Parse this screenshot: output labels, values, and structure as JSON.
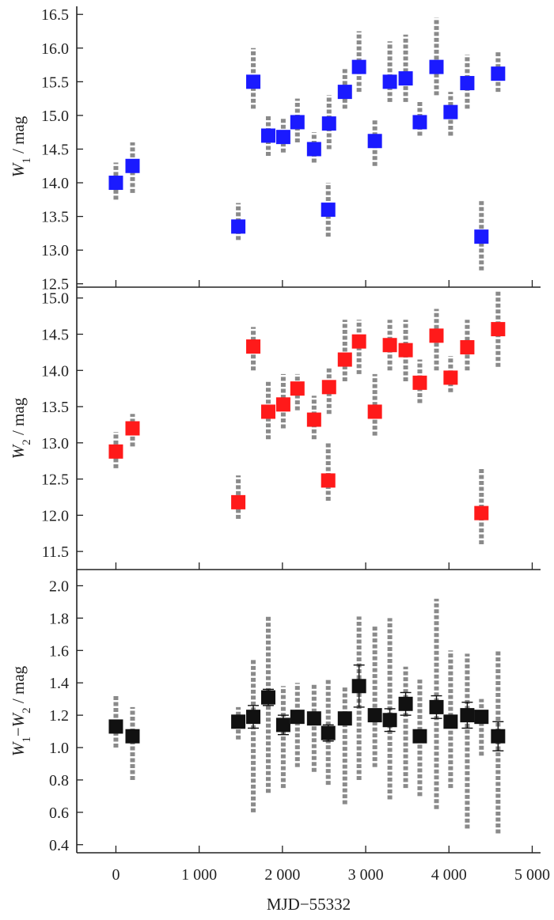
{
  "chart_data": [
    {
      "type": "scatter",
      "panel": "top",
      "ylabel": {
        "main": "W",
        "sub": "1",
        "unit": " / mag"
      },
      "ylim": [
        12.45,
        16.62
      ],
      "yticks": [
        "12.5",
        "13.0",
        "13.5",
        "14.0",
        "14.5",
        "15.0",
        "15.5",
        "16.0",
        "16.5"
      ],
      "marker_color": "#1a1aff",
      "series": [
        {
          "name": "",
          "x": [
            0,
            200,
            1470,
            1650,
            1830,
            2010,
            2180,
            2380,
            2550,
            2560,
            2750,
            2920,
            3110,
            3290,
            3480,
            3650,
            3850,
            4020,
            4220,
            4390,
            4590
          ],
          "y": [
            14.0,
            14.25,
            13.35,
            15.5,
            14.7,
            14.68,
            14.9,
            14.5,
            13.6,
            14.88,
            15.35,
            15.72,
            14.62,
            15.5,
            15.55,
            14.9,
            15.72,
            15.05,
            15.48,
            13.2,
            15.62
          ],
          "scatter": [
            [
              13.75,
              14.3
            ],
            [
              13.85,
              14.6
            ],
            [
              13.15,
              13.7
            ],
            [
              15.1,
              16.0
            ],
            [
              14.4,
              15.0
            ],
            [
              14.45,
              14.95
            ],
            [
              14.6,
              15.25
            ],
            [
              14.3,
              14.75
            ],
            [
              13.2,
              14.0
            ],
            [
              14.5,
              15.3
            ],
            [
              15.1,
              15.7
            ],
            [
              15.35,
              16.25
            ],
            [
              14.25,
              14.95
            ],
            [
              15.2,
              16.1
            ],
            [
              15.2,
              16.2
            ],
            [
              14.7,
              15.2
            ],
            [
              15.3,
              16.45
            ],
            [
              14.7,
              15.35
            ],
            [
              15.1,
              15.9
            ],
            [
              12.7,
              13.75
            ],
            [
              15.35,
              15.95
            ]
          ]
        }
      ]
    },
    {
      "type": "scatter",
      "panel": "middle",
      "ylabel": {
        "main": "W",
        "sub": "2",
        "unit": " / mag"
      },
      "ylim": [
        11.25,
        15.15
      ],
      "yticks": [
        "11.5",
        "12.0",
        "12.5",
        "13.0",
        "13.5",
        "14.0",
        "14.5",
        "15.0"
      ],
      "marker_color": "#ff1a1a",
      "series": [
        {
          "name": "",
          "x": [
            0,
            200,
            1470,
            1650,
            1830,
            2010,
            2180,
            2380,
            2550,
            2560,
            2750,
            2920,
            3110,
            3290,
            3480,
            3650,
            3850,
            4020,
            4220,
            4390,
            4590
          ],
          "y": [
            12.88,
            13.2,
            12.18,
            14.33,
            13.43,
            13.53,
            13.75,
            13.32,
            12.48,
            13.77,
            14.15,
            14.4,
            13.43,
            14.35,
            14.28,
            13.83,
            14.48,
            13.9,
            14.32,
            12.03,
            14.57
          ],
          "scatter": [
            [
              12.65,
              13.15
            ],
            [
              12.95,
              13.4
            ],
            [
              11.95,
              12.55
            ],
            [
              14.0,
              14.6
            ],
            [
              13.05,
              13.85
            ],
            [
              13.2,
              13.95
            ],
            [
              13.45,
              13.95
            ],
            [
              13.05,
              13.65
            ],
            [
              12.2,
              13.0
            ],
            [
              13.4,
              14.05
            ],
            [
              13.85,
              14.7
            ],
            [
              13.95,
              14.7
            ],
            [
              13.1,
              13.95
            ],
            [
              14.0,
              14.7
            ],
            [
              13.85,
              14.7
            ],
            [
              13.55,
              14.15
            ],
            [
              14.0,
              14.85
            ],
            [
              13.7,
              14.2
            ],
            [
              14.0,
              14.7
            ],
            [
              11.6,
              12.65
            ],
            [
              14.05,
              15.1
            ]
          ]
        }
      ]
    },
    {
      "type": "scatter",
      "panel": "bottom",
      "ylabel": {
        "main1": "W",
        "sub1": "1",
        "dash": "−",
        "main2": "W",
        "sub2": "2",
        "unit": " / mag"
      },
      "ylim": [
        0.35,
        2.1
      ],
      "yticks": [
        "0.4",
        "0.6",
        "0.8",
        "1.0",
        "1.2",
        "1.4",
        "1.6",
        "1.8",
        "2.0"
      ],
      "marker_color": "#111111",
      "xlabel": "MJD−55332",
      "xlim": [
        -470,
        5100
      ],
      "xticks": [
        {
          "v": 0,
          "label": "0"
        },
        {
          "v": 1000,
          "label": "1 000"
        },
        {
          "v": 2000,
          "label": "2 000"
        },
        {
          "v": 3000,
          "label": "3 000"
        },
        {
          "v": 4000,
          "label": "4 000"
        },
        {
          "v": 5000,
          "label": "5 000"
        }
      ],
      "series": [
        {
          "name": "",
          "x": [
            0,
            200,
            1470,
            1650,
            1830,
            2010,
            2180,
            2380,
            2550,
            2750,
            2920,
            3110,
            3290,
            3480,
            3650,
            3850,
            4020,
            4220,
            4390,
            4590
          ],
          "y": [
            1.13,
            1.07,
            1.16,
            1.19,
            1.31,
            1.14,
            1.19,
            1.18,
            1.09,
            1.18,
            1.38,
            1.2,
            1.17,
            1.27,
            1.07,
            1.25,
            1.16,
            1.2,
            1.19,
            1.07
          ],
          "err": [
            0,
            0,
            0,
            0.07,
            0.05,
            0.06,
            0,
            0,
            0.05,
            0,
            0.13,
            0,
            0.07,
            0.07,
            0,
            0.07,
            0,
            0.08,
            0,
            0.09
          ],
          "scatter": [
            [
              1.0,
              1.33
            ],
            [
              0.8,
              1.25
            ],
            [
              1.05,
              1.25
            ],
            [
              0.6,
              1.55
            ],
            [
              0.72,
              1.82
            ],
            [
              0.75,
              1.38
            ],
            [
              0.88,
              1.4
            ],
            [
              0.85,
              1.4
            ],
            [
              0.77,
              1.42
            ],
            [
              0.65,
              1.38
            ],
            [
              0.8,
              1.81
            ],
            [
              0.88,
              1.75
            ],
            [
              0.68,
              1.8
            ],
            [
              0.75,
              1.5
            ],
            [
              0.7,
              1.42
            ],
            [
              0.62,
              1.92
            ],
            [
              0.75,
              1.6
            ],
            [
              0.5,
              1.58
            ],
            [
              0.95,
              1.3
            ],
            [
              0.47,
              1.6
            ]
          ]
        }
      ]
    }
  ]
}
